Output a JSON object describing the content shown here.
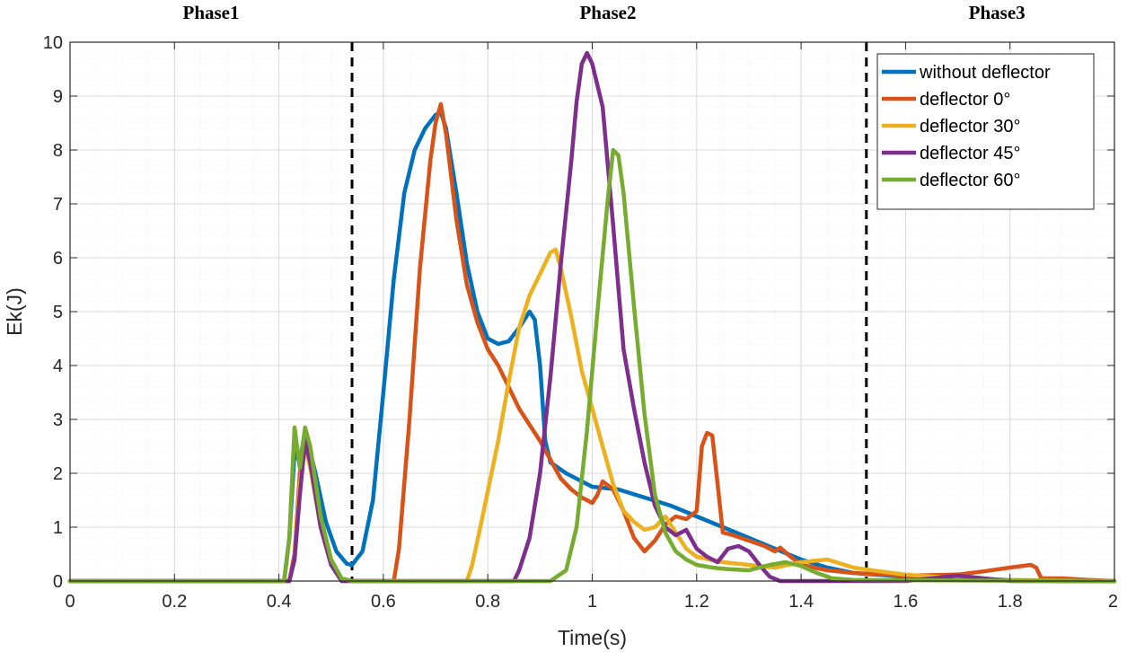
{
  "chart_data": {
    "type": "line",
    "title": "",
    "xlabel": "Time(s)",
    "ylabel": "Ek(J)",
    "xlim": [
      0,
      2
    ],
    "ylim": [
      0,
      10
    ],
    "grid": true,
    "minor_grid": true,
    "legend_position": "top-right",
    "x_ticks": [
      "0",
      "0.2",
      "0.4",
      "0.6",
      "0.8",
      "1",
      "1.2",
      "1.4",
      "1.6",
      "1.8",
      "2"
    ],
    "y_ticks": [
      "0",
      "1",
      "2",
      "3",
      "4",
      "5",
      "6",
      "7",
      "8",
      "9",
      "10"
    ],
    "phase_lines": [
      0.54,
      1.525
    ],
    "phase_labels": [
      {
        "text": "Phase1",
        "x": 0.27
      },
      {
        "text": "Phase2",
        "x": 1.03
      },
      {
        "text": "Phase3",
        "x": 1.775
      }
    ],
    "series": [
      {
        "name": "without deflector",
        "color": "#0072BD",
        "points": [
          [
            0,
            0
          ],
          [
            0.41,
            0
          ],
          [
            0.42,
            0.8
          ],
          [
            0.43,
            2.4
          ],
          [
            0.44,
            2.2
          ],
          [
            0.45,
            2.8
          ],
          [
            0.47,
            2.0
          ],
          [
            0.49,
            1.1
          ],
          [
            0.51,
            0.55
          ],
          [
            0.53,
            0.32
          ],
          [
            0.54,
            0.3
          ],
          [
            0.56,
            0.55
          ],
          [
            0.58,
            1.5
          ],
          [
            0.6,
            3.5
          ],
          [
            0.62,
            5.6
          ],
          [
            0.64,
            7.2
          ],
          [
            0.66,
            8.0
          ],
          [
            0.68,
            8.4
          ],
          [
            0.7,
            8.65
          ],
          [
            0.71,
            8.7
          ],
          [
            0.72,
            8.4
          ],
          [
            0.74,
            7.2
          ],
          [
            0.76,
            5.9
          ],
          [
            0.78,
            5.0
          ],
          [
            0.8,
            4.5
          ],
          [
            0.82,
            4.4
          ],
          [
            0.84,
            4.45
          ],
          [
            0.86,
            4.7
          ],
          [
            0.88,
            5.0
          ],
          [
            0.89,
            4.85
          ],
          [
            0.9,
            4.0
          ],
          [
            0.91,
            2.6
          ],
          [
            0.92,
            2.2
          ],
          [
            0.95,
            2.0
          ],
          [
            1.0,
            1.75
          ],
          [
            1.05,
            1.7
          ],
          [
            1.1,
            1.55
          ],
          [
            1.15,
            1.4
          ],
          [
            1.2,
            1.2
          ],
          [
            1.25,
            1.0
          ],
          [
            1.3,
            0.8
          ],
          [
            1.35,
            0.6
          ],
          [
            1.4,
            0.4
          ],
          [
            1.45,
            0.25
          ],
          [
            1.5,
            0.15
          ],
          [
            1.6,
            0.08
          ],
          [
            1.7,
            0.05
          ],
          [
            1.8,
            0.02
          ],
          [
            1.9,
            0.0
          ],
          [
            2.0,
            0.0
          ]
        ]
      },
      {
        "name": "deflector 0°",
        "color": "#D95319",
        "points": [
          [
            0,
            0
          ],
          [
            0.42,
            0
          ],
          [
            0.43,
            0.5
          ],
          [
            0.44,
            2.0
          ],
          [
            0.45,
            2.6
          ],
          [
            0.46,
            2.2
          ],
          [
            0.48,
            1.0
          ],
          [
            0.5,
            0.3
          ],
          [
            0.52,
            0.05
          ],
          [
            0.54,
            0
          ],
          [
            0.62,
            0
          ],
          [
            0.63,
            0.6
          ],
          [
            0.65,
            3.0
          ],
          [
            0.67,
            5.8
          ],
          [
            0.69,
            7.8
          ],
          [
            0.7,
            8.5
          ],
          [
            0.71,
            8.85
          ],
          [
            0.72,
            8.3
          ],
          [
            0.74,
            6.7
          ],
          [
            0.76,
            5.5
          ],
          [
            0.78,
            4.8
          ],
          [
            0.8,
            4.3
          ],
          [
            0.82,
            4.0
          ],
          [
            0.84,
            3.6
          ],
          [
            0.86,
            3.2
          ],
          [
            0.88,
            2.9
          ],
          [
            0.9,
            2.6
          ],
          [
            0.92,
            2.25
          ],
          [
            0.94,
            1.9
          ],
          [
            0.96,
            1.7
          ],
          [
            0.98,
            1.55
          ],
          [
            1.0,
            1.45
          ],
          [
            1.01,
            1.6
          ],
          [
            1.02,
            1.85
          ],
          [
            1.04,
            1.7
          ],
          [
            1.06,
            1.3
          ],
          [
            1.08,
            0.8
          ],
          [
            1.1,
            0.55
          ],
          [
            1.12,
            0.75
          ],
          [
            1.14,
            1.05
          ],
          [
            1.16,
            1.2
          ],
          [
            1.18,
            1.15
          ],
          [
            1.2,
            1.3
          ],
          [
            1.21,
            2.5
          ],
          [
            1.22,
            2.75
          ],
          [
            1.23,
            2.7
          ],
          [
            1.24,
            1.8
          ],
          [
            1.25,
            0.9
          ],
          [
            1.27,
            0.85
          ],
          [
            1.3,
            0.75
          ],
          [
            1.33,
            0.65
          ],
          [
            1.35,
            0.55
          ],
          [
            1.36,
            0.62
          ],
          [
            1.38,
            0.45
          ],
          [
            1.4,
            0.3
          ],
          [
            1.45,
            0.2
          ],
          [
            1.5,
            0.15
          ],
          [
            1.6,
            0.1
          ],
          [
            1.7,
            0.12
          ],
          [
            1.75,
            0.18
          ],
          [
            1.8,
            0.25
          ],
          [
            1.84,
            0.3
          ],
          [
            1.85,
            0.25
          ],
          [
            1.86,
            0.05
          ],
          [
            1.9,
            0.05
          ],
          [
            1.95,
            0.02
          ],
          [
            2.0,
            0
          ]
        ]
      },
      {
        "name": "deflector 30°",
        "color": "#EDB120",
        "points": [
          [
            0,
            0
          ],
          [
            0.42,
            0
          ],
          [
            0.43,
            0.4
          ],
          [
            0.44,
            1.8
          ],
          [
            0.45,
            2.5
          ],
          [
            0.46,
            2.1
          ],
          [
            0.48,
            1.0
          ],
          [
            0.5,
            0.3
          ],
          [
            0.52,
            0
          ],
          [
            0.76,
            0
          ],
          [
            0.77,
            0.3
          ],
          [
            0.79,
            1.2
          ],
          [
            0.82,
            2.6
          ],
          [
            0.84,
            3.7
          ],
          [
            0.86,
            4.7
          ],
          [
            0.88,
            5.3
          ],
          [
            0.9,
            5.7
          ],
          [
            0.92,
            6.1
          ],
          [
            0.93,
            6.15
          ],
          [
            0.94,
            5.8
          ],
          [
            0.96,
            4.9
          ],
          [
            0.98,
            3.9
          ],
          [
            1.0,
            3.2
          ],
          [
            1.02,
            2.5
          ],
          [
            1.04,
            1.8
          ],
          [
            1.06,
            1.3
          ],
          [
            1.08,
            1.1
          ],
          [
            1.1,
            0.95
          ],
          [
            1.12,
            1.0
          ],
          [
            1.14,
            1.2
          ],
          [
            1.16,
            0.9
          ],
          [
            1.18,
            0.6
          ],
          [
            1.2,
            0.45
          ],
          [
            1.25,
            0.35
          ],
          [
            1.3,
            0.3
          ],
          [
            1.35,
            0.25
          ],
          [
            1.4,
            0.35
          ],
          [
            1.45,
            0.4
          ],
          [
            1.5,
            0.25
          ],
          [
            1.55,
            0.18
          ],
          [
            1.6,
            0.12
          ],
          [
            1.7,
            0.05
          ],
          [
            1.8,
            0.02
          ],
          [
            2.0,
            0
          ]
        ]
      },
      {
        "name": "deflector 45°",
        "color": "#7E2F8E",
        "points": [
          [
            0,
            0
          ],
          [
            0.42,
            0
          ],
          [
            0.43,
            0.4
          ],
          [
            0.44,
            1.6
          ],
          [
            0.45,
            2.6
          ],
          [
            0.46,
            2.2
          ],
          [
            0.48,
            1.0
          ],
          [
            0.5,
            0.3
          ],
          [
            0.52,
            0
          ],
          [
            0.85,
            0
          ],
          [
            0.86,
            0.2
          ],
          [
            0.88,
            0.8
          ],
          [
            0.9,
            2.0
          ],
          [
            0.92,
            3.8
          ],
          [
            0.94,
            5.9
          ],
          [
            0.96,
            7.8
          ],
          [
            0.97,
            8.9
          ],
          [
            0.98,
            9.6
          ],
          [
            0.99,
            9.8
          ],
          [
            1.0,
            9.6
          ],
          [
            1.02,
            8.8
          ],
          [
            1.04,
            6.6
          ],
          [
            1.06,
            4.3
          ],
          [
            1.08,
            3.2
          ],
          [
            1.1,
            2.2
          ],
          [
            1.12,
            1.4
          ],
          [
            1.14,
            1.0
          ],
          [
            1.16,
            0.85
          ],
          [
            1.18,
            0.95
          ],
          [
            1.2,
            0.6
          ],
          [
            1.22,
            0.45
          ],
          [
            1.24,
            0.35
          ],
          [
            1.26,
            0.6
          ],
          [
            1.28,
            0.65
          ],
          [
            1.3,
            0.55
          ],
          [
            1.32,
            0.3
          ],
          [
            1.34,
            0.08
          ],
          [
            1.36,
            0
          ],
          [
            1.6,
            0
          ],
          [
            1.65,
            0.05
          ],
          [
            1.7,
            0.1
          ],
          [
            1.75,
            0.05
          ],
          [
            1.8,
            0
          ],
          [
            2.0,
            0
          ]
        ]
      },
      {
        "name": "deflector 60°",
        "color": "#77AC30",
        "points": [
          [
            0,
            0
          ],
          [
            0.41,
            0
          ],
          [
            0.42,
            0.8
          ],
          [
            0.43,
            2.85
          ],
          [
            0.44,
            2.1
          ],
          [
            0.45,
            2.85
          ],
          [
            0.46,
            2.5
          ],
          [
            0.48,
            1.2
          ],
          [
            0.5,
            0.4
          ],
          [
            0.52,
            0.05
          ],
          [
            0.54,
            0
          ],
          [
            0.92,
            0
          ],
          [
            0.95,
            0.2
          ],
          [
            0.97,
            1.0
          ],
          [
            0.99,
            2.8
          ],
          [
            1.01,
            5.0
          ],
          [
            1.03,
            7.1
          ],
          [
            1.04,
            8.0
          ],
          [
            1.05,
            7.9
          ],
          [
            1.06,
            7.2
          ],
          [
            1.08,
            5.1
          ],
          [
            1.1,
            3.1
          ],
          [
            1.12,
            1.6
          ],
          [
            1.14,
            0.9
          ],
          [
            1.16,
            0.55
          ],
          [
            1.18,
            0.4
          ],
          [
            1.2,
            0.3
          ],
          [
            1.23,
            0.25
          ],
          [
            1.26,
            0.22
          ],
          [
            1.3,
            0.2
          ],
          [
            1.34,
            0.3
          ],
          [
            1.37,
            0.35
          ],
          [
            1.4,
            0.28
          ],
          [
            1.43,
            0.15
          ],
          [
            1.46,
            0.05
          ],
          [
            1.5,
            0.02
          ],
          [
            2.0,
            0
          ]
        ]
      }
    ]
  }
}
